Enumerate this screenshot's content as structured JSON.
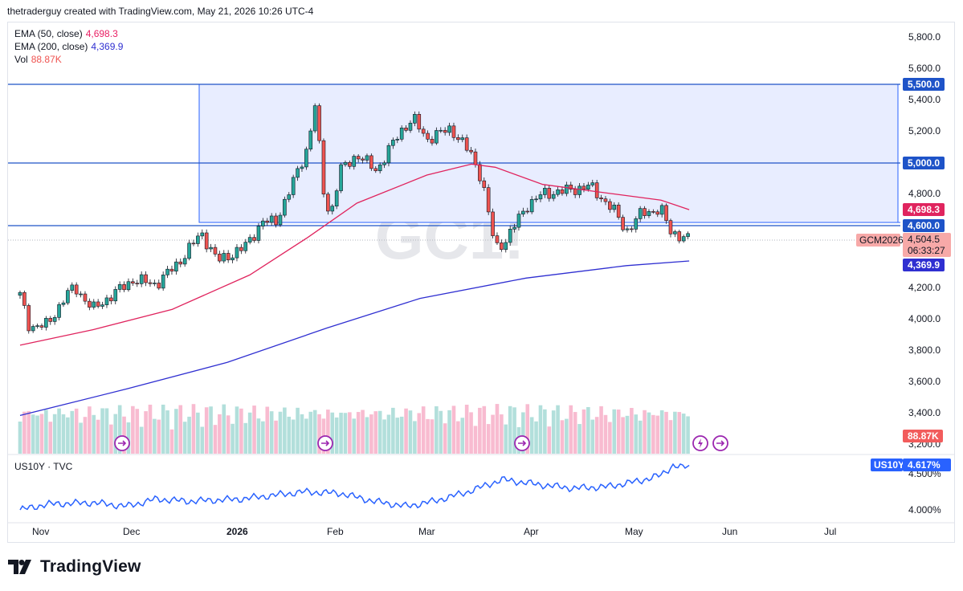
{
  "header": {
    "attribution": "thetraderguy created with TradingView.com, May 21, 2026 10:26 UTC-4"
  },
  "legend": {
    "ema50": {
      "label": "EMA (50, close)",
      "value": "4,698.3",
      "color": "#e91e63"
    },
    "ema200": {
      "label": "EMA (200, close)",
      "value": "4,369.9",
      "color": "#2f2fd1"
    },
    "vol": {
      "label": "Vol",
      "value": "88.87K",
      "color": "#ef5350"
    }
  },
  "watermark": "GC1!",
  "price_axis": {
    "ticks": [
      "5,800.0",
      "5,600.0",
      "5,400.0",
      "5,200.0",
      "4,800.0",
      "4,200.0",
      "4,000.0",
      "3,800.0",
      "3,600.0",
      "3,400.0",
      "3,200.0"
    ],
    "level_labels": [
      "5,500.0",
      "5,000.0",
      "4,600.0"
    ],
    "ema50_label": "4,698.3",
    "ema200_label": "4,369.9",
    "last_price": "4,504.5",
    "countdown": "06:33:27",
    "symbol_tag": "GCM2026",
    "volume_label": "88.87K"
  },
  "lower_pane": {
    "title": "US10Y · TVC",
    "badge_symbol": "US10Y",
    "badge_value": "4.617%",
    "ticks": [
      "4.500%",
      "4.000%"
    ]
  },
  "time_axis": {
    "labels": [
      "Nov",
      "Dec",
      "2026",
      "Feb",
      "Mar",
      "Apr",
      "May",
      "Jun",
      "Jul"
    ]
  },
  "footer": {
    "brand": "TradingView"
  },
  "colors": {
    "up": "#26a69a",
    "down": "#ef5350",
    "up_vol": "#b2dfdb",
    "down_vol": "#f8bbd0",
    "box_fill": "#e8edff",
    "line_blue": "#2962ff",
    "yield": "#2962ff"
  },
  "chart_data": {
    "type": "candlestick",
    "symbol": "GC1!",
    "horizontal_levels": [
      5500,
      5000,
      4600
    ],
    "box": {
      "from": "Dec 22",
      "price_top": 5500,
      "price_bottom": 4615
    },
    "ema50_last": 4698.3,
    "ema200_last": 4369.9,
    "last_price": 4504.5,
    "ylim": [
      3150,
      5850
    ],
    "price_path": [
      {
        "d": "Oct 27",
        "p": 4150
      },
      {
        "d": "Oct 30",
        "p": 3950
      },
      {
        "d": "Nov 5",
        "p": 3960
      },
      {
        "d": "Nov 11",
        "p": 4150
      },
      {
        "d": "Nov 14",
        "p": 4200
      },
      {
        "d": "Nov 20",
        "p": 4060
      },
      {
        "d": "Nov 26",
        "p": 4150
      },
      {
        "d": "Dec 3",
        "p": 4250
      },
      {
        "d": "Dec 10",
        "p": 4220
      },
      {
        "d": "Dec 17",
        "p": 4360
      },
      {
        "d": "Dec 24",
        "p": 4550
      },
      {
        "d": "Dec 29",
        "p": 4370
      },
      {
        "d": "Jan 6",
        "p": 4450
      },
      {
        "d": "Jan 12",
        "p": 4620
      },
      {
        "d": "Jan 16",
        "p": 4620
      },
      {
        "d": "Jan 20",
        "p": 4800
      },
      {
        "d": "Jan 26",
        "p": 5100
      },
      {
        "d": "Jan 29",
        "p": 5450
      },
      {
        "d": "Jan 30",
        "p": 4900
      },
      {
        "d": "Feb 2",
        "p": 4650
      },
      {
        "d": "Feb 5",
        "p": 4950
      },
      {
        "d": "Feb 10",
        "p": 5050
      },
      {
        "d": "Feb 16",
        "p": 4950
      },
      {
        "d": "Feb 23",
        "p": 5200
      },
      {
        "d": "Feb 27",
        "p": 5280
      },
      {
        "d": "Mar 3",
        "p": 5150
      },
      {
        "d": "Mar 10",
        "p": 5220
      },
      {
        "d": "Mar 16",
        "p": 5050
      },
      {
        "d": "Mar 19",
        "p": 4900
      },
      {
        "d": "Mar 23",
        "p": 4450
      },
      {
        "d": "Mar 26",
        "p": 4500
      },
      {
        "d": "Apr 1",
        "p": 4720
      },
      {
        "d": "Apr 6",
        "p": 4800
      },
      {
        "d": "Apr 13",
        "p": 4820
      },
      {
        "d": "Apr 20",
        "p": 4850
      },
      {
        "d": "Apr 27",
        "p": 4700
      },
      {
        "d": "May 1",
        "p": 4560
      },
      {
        "d": "May 6",
        "p": 4680
      },
      {
        "d": "May 12",
        "p": 4700
      },
      {
        "d": "May 15",
        "p": 4560
      },
      {
        "d": "May 21",
        "p": 4504.5
      }
    ],
    "ema50": [
      {
        "d": "Oct 27",
        "p": 3830
      },
      {
        "d": "Nov 20",
        "p": 3930
      },
      {
        "d": "Dec 15",
        "p": 4060
      },
      {
        "d": "Jan 8",
        "p": 4280
      },
      {
        "d": "Jan 26",
        "p": 4520
      },
      {
        "d": "Feb 10",
        "p": 4740
      },
      {
        "d": "Mar 3",
        "p": 4920
      },
      {
        "d": "Mar 16",
        "p": 4990
      },
      {
        "d": "Mar 23",
        "p": 4970
      },
      {
        "d": "Apr 6",
        "p": 4860
      },
      {
        "d": "Apr 27",
        "p": 4800
      },
      {
        "d": "May 12",
        "p": 4760
      },
      {
        "d": "May 21",
        "p": 4698.3
      }
    ],
    "ema200": [
      {
        "d": "Oct 27",
        "p": 3380
      },
      {
        "d": "Dec 1",
        "p": 3550
      },
      {
        "d": "Jan 1",
        "p": 3720
      },
      {
        "d": "Feb 1",
        "p": 3940
      },
      {
        "d": "Mar 1",
        "p": 4130
      },
      {
        "d": "Apr 1",
        "p": 4260
      },
      {
        "d": "May 1",
        "p": 4340
      },
      {
        "d": "May 21",
        "p": 4369.9
      }
    ],
    "us10y": {
      "ticks": [
        4.5,
        4.0
      ],
      "last": 4.617,
      "path": [
        {
          "d": "Oct 27",
          "v": 4.0
        },
        {
          "d": "Nov 5",
          "v": 4.08
        },
        {
          "d": "Nov 20",
          "v": 4.1
        },
        {
          "d": "Dec 1",
          "v": 4.05
        },
        {
          "d": "Dec 10",
          "v": 4.15
        },
        {
          "d": "Dec 20",
          "v": 4.12
        },
        {
          "d": "Jan 5",
          "v": 4.15
        },
        {
          "d": "Jan 15",
          "v": 4.2
        },
        {
          "d": "Jan 25",
          "v": 4.25
        },
        {
          "d": "Feb 5",
          "v": 4.23
        },
        {
          "d": "Feb 15",
          "v": 4.12
        },
        {
          "d": "Feb 25",
          "v": 4.05
        },
        {
          "d": "Mar 5",
          "v": 4.12
        },
        {
          "d": "Mar 15",
          "v": 4.25
        },
        {
          "d": "Mar 25",
          "v": 4.42
        },
        {
          "d": "Apr 5",
          "v": 4.35
        },
        {
          "d": "Apr 15",
          "v": 4.3
        },
        {
          "d": "Apr 25",
          "v": 4.32
        },
        {
          "d": "May 5",
          "v": 4.4
        },
        {
          "d": "May 12",
          "v": 4.48
        },
        {
          "d": "May 16",
          "v": 4.62
        },
        {
          "d": "May 19",
          "v": 4.58
        },
        {
          "d": "May 21",
          "v": 4.617
        }
      ]
    }
  }
}
